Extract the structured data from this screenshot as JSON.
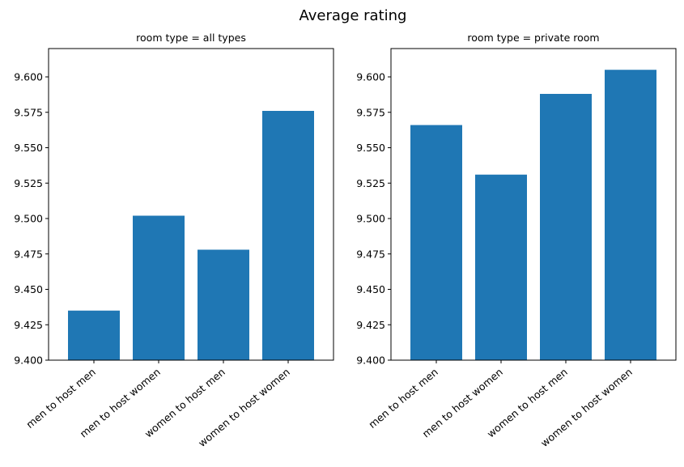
{
  "figure_title": "Average rating",
  "colors": {
    "bar": "#1f77b4",
    "axes": "#000000",
    "background": "#ffffff"
  },
  "chart_data": [
    {
      "type": "bar",
      "title": "room type = all types",
      "xlabel": "",
      "ylabel": "",
      "grid": false,
      "categories": [
        "men to host men",
        "men to host women",
        "women to host men",
        "women to host women"
      ],
      "values": [
        9.435,
        9.502,
        9.478,
        9.576
      ],
      "ylim": [
        9.4,
        9.62
      ],
      "yticks": [
        9.4,
        9.425,
        9.45,
        9.475,
        9.5,
        9.525,
        9.55,
        9.575,
        9.6
      ],
      "ytick_labels": [
        "9.400",
        "9.425",
        "9.450",
        "9.475",
        "9.500",
        "9.525",
        "9.550",
        "9.575",
        "9.600"
      ]
    },
    {
      "type": "bar",
      "title": "room type = private room",
      "xlabel": "",
      "ylabel": "",
      "grid": false,
      "categories": [
        "men to host men",
        "men to host women",
        "women to host men",
        "women to host women"
      ],
      "values": [
        9.566,
        9.531,
        9.588,
        9.605
      ],
      "ylim": [
        9.4,
        9.62
      ],
      "yticks": [
        9.4,
        9.425,
        9.45,
        9.475,
        9.5,
        9.525,
        9.55,
        9.575,
        9.6
      ],
      "ytick_labels": [
        "9.400",
        "9.425",
        "9.450",
        "9.475",
        "9.500",
        "9.525",
        "9.550",
        "9.575",
        "9.600"
      ]
    }
  ]
}
